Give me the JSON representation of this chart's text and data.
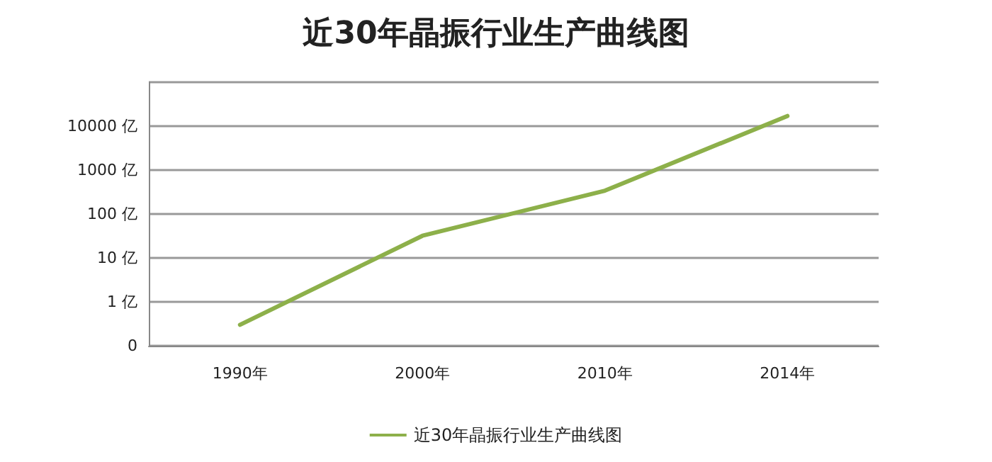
{
  "chart_data": {
    "type": "line",
    "title": "近30年晶振行业生产曲线图",
    "categories": [
      "1990年",
      "2000年",
      "2010年",
      "2014年"
    ],
    "series": [
      {
        "name": "近30年晶振行业生产曲线图",
        "color": "#8db04a",
        "values": [
          0.3,
          32,
          340,
          17000
        ]
      }
    ],
    "log": "y",
    "ylim": [
      0.1,
      100000
    ],
    "yticks": [
      {
        "value": 0.1,
        "label": "0"
      },
      {
        "value": 1,
        "label": "1 亿"
      },
      {
        "value": 10,
        "label": "10 亿"
      },
      {
        "value": 100,
        "label": "100 亿"
      },
      {
        "value": 1000,
        "label": "1000 亿"
      },
      {
        "value": 10000,
        "label": "10000 亿"
      },
      {
        "value": 100000,
        "label": null
      }
    ],
    "grid": "y",
    "legend": "bottom",
    "marker": "none",
    "line_style": "solid"
  }
}
